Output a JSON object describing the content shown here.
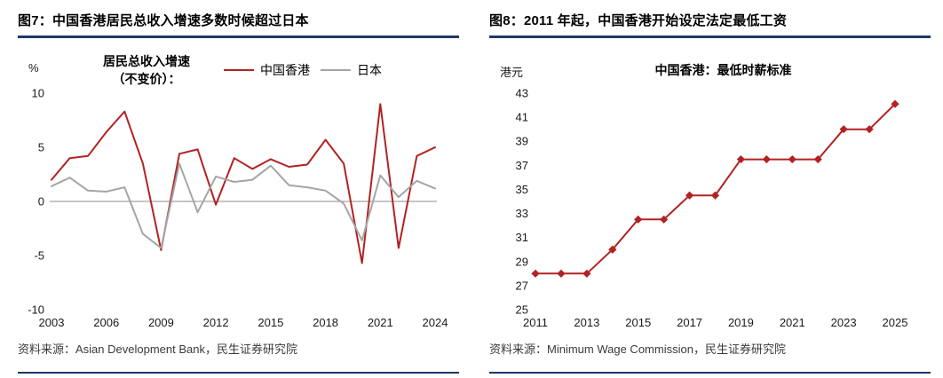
{
  "colors": {
    "accent_red": "#B22222",
    "line_gray": "#A5A5A5",
    "title_underline_navy": "#1F3864",
    "zero_line_gray": "#8c8c8c"
  },
  "left_panel": {
    "title": "图7：中国香港居民总收入增速多数时候超过日本",
    "unit_label": "%",
    "legend_caption_line1": "居民总收入增速",
    "legend_caption_line2": "（不变价）：",
    "source": "资料来源：Asian Development Bank，民生证券研究院"
  },
  "right_panel": {
    "title": "图8：2011 年起，中国香港开始设定法定最低工资",
    "unit_label": "港元",
    "source": "资料来源：Minimum Wage Commission，民生证券研究院"
  },
  "chart_data": [
    {
      "type": "line",
      "title": "居民总收入增速（不变价）",
      "ylabel": "%",
      "x": [
        2003,
        2004,
        2005,
        2006,
        2007,
        2008,
        2009,
        2010,
        2011,
        2012,
        2013,
        2014,
        2015,
        2016,
        2017,
        2018,
        2019,
        2020,
        2021,
        2022,
        2023,
        2024
      ],
      "series": [
        {
          "name": "中国香港",
          "color": "#B22222",
          "values": [
            2.0,
            4.0,
            4.2,
            6.4,
            8.3,
            3.5,
            -4.5,
            4.4,
            4.8,
            -0.3,
            4.0,
            3.0,
            3.9,
            3.2,
            3.4,
            5.7,
            3.5,
            -5.7,
            9.0,
            -4.3,
            4.2,
            5.0
          ]
        },
        {
          "name": "日本",
          "color": "#A5A5A5",
          "values": [
            1.4,
            2.2,
            1.0,
            0.9,
            1.3,
            -3.0,
            -4.3,
            3.5,
            -1.0,
            2.3,
            1.8,
            2.0,
            3.3,
            1.5,
            1.3,
            1.0,
            -0.2,
            -3.6,
            2.4,
            0.4,
            1.9,
            1.2
          ]
        }
      ],
      "ylim": [
        -10,
        10
      ],
      "yticks": [
        10,
        5,
        0,
        -5,
        -10
      ],
      "xticks": [
        2003,
        2006,
        2009,
        2012,
        2015,
        2018,
        2021,
        2024
      ],
      "grid": false,
      "zero_line": true,
      "legend_position": "top"
    },
    {
      "type": "line",
      "title": "中国香港：最低时薪标准",
      "ylabel": "港元",
      "x": [
        2011,
        2012,
        2013,
        2014,
        2015,
        2016,
        2017,
        2018,
        2019,
        2020,
        2021,
        2022,
        2023,
        2024,
        2025
      ],
      "series": [
        {
          "name": "最低时薪标准",
          "color": "#B22222",
          "marker": "diamond",
          "values": [
            28,
            28,
            28,
            30,
            32.5,
            32.5,
            34.5,
            34.5,
            37.5,
            37.5,
            37.5,
            37.5,
            40,
            40,
            42.1
          ]
        }
      ],
      "ylim": [
        25,
        43
      ],
      "yticks": [
        25,
        27,
        29,
        31,
        33,
        35,
        37,
        39,
        41,
        43
      ],
      "xticks": [
        2011,
        2013,
        2015,
        2017,
        2019,
        2021,
        2023,
        2025
      ],
      "grid": false,
      "zero_line": false,
      "legend_position": "none"
    }
  ]
}
